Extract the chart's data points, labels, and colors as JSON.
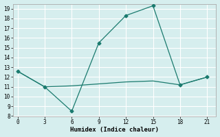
{
  "xlabel": "Humidex (Indice chaleur)",
  "line1_x": [
    0,
    3,
    6,
    9,
    12,
    15,
    18,
    21
  ],
  "line1_y": [
    12.6,
    11.0,
    8.5,
    15.5,
    18.3,
    19.3,
    11.2,
    12.0
  ],
  "line2_x": [
    0,
    3,
    6,
    9,
    12,
    15,
    18,
    21
  ],
  "line2_y": [
    12.6,
    11.0,
    11.1,
    11.3,
    11.5,
    11.6,
    11.2,
    12.0
  ],
  "line_color": "#1a7a6e",
  "bg_color": "#d6eeee",
  "grid_color": "#ffffff",
  "xlim": [
    -0.5,
    22
  ],
  "ylim": [
    8,
    19.5
  ],
  "xticks": [
    0,
    3,
    6,
    9,
    12,
    15,
    18,
    21
  ],
  "yticks": [
    8,
    9,
    10,
    11,
    12,
    13,
    14,
    15,
    16,
    17,
    18,
    19
  ],
  "marker": "D",
  "markersize": 2.5,
  "linewidth": 0.9,
  "tick_fontsize": 5.5,
  "xlabel_fontsize": 6.5
}
